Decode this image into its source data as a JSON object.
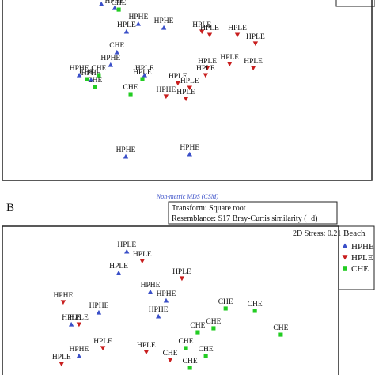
{
  "chart_data": [
    {
      "type": "scatter",
      "xlim": [
        0,
        100
      ],
      "ylim": [
        0,
        100
      ],
      "series": [
        {
          "color": "#3a4fc8",
          "marker": "triangle-up",
          "x": [
            26.8,
            30.4,
            36.8,
            33.6,
            31,
            29.3,
            24,
            33.4,
            50.7,
            43.7,
            38.5,
            20.8
          ],
          "y": [
            97.8,
            95.6,
            86.8,
            82.5,
            71,
            64,
            55.7,
            13.2,
            14.5,
            84.6,
            58.3,
            58.3
          ],
          "labels": [
            "HPHE",
            "HPHE",
            "HPHE",
            "HPLE",
            "CHE",
            "HPHE",
            "HPHE",
            "HPHE",
            "HPHE",
            "HPHE",
            "HPLE",
            "HPHE"
          ]
        },
        {
          "color": "#c81e1e",
          "marker": "triangle-down",
          "x": [
            54,
            56.1,
            63.6,
            68.5,
            61.5,
            67.9,
            55.5,
            47.5,
            50.7,
            44.3,
            49.7,
            55
          ],
          "y": [
            82.5,
            80.7,
            80.7,
            75.9,
            64.5,
            62.3,
            62.3,
            53.9,
            51.3,
            46.5,
            45.2,
            58.3
          ],
          "labels": [
            "HPLE",
            "HPLE",
            "HPLE",
            "HPLE",
            "HPLE",
            "HPLE",
            "HPLE",
            "HPLE",
            "HPLE",
            "HPHE",
            "HPLE",
            "HPLE"
          ]
        },
        {
          "color": "#22cc22",
          "marker": "square",
          "x": [
            34.7,
            25,
            22.9,
            37.9,
            31.5,
            26.1
          ],
          "y": [
            47.8,
            51.7,
            56.1,
            56.1,
            94.7,
            58.3
          ],
          "labels": [
            "CHE",
            "CHE",
            "CHE",
            "HPLE",
            "CHE",
            "CHE"
          ]
        }
      ]
    },
    {
      "type": "scatter",
      "panel": "B",
      "title": "Non-metric MDS (CSM)",
      "annotations": [
        "Transform: Square root",
        "Resemblance: S17 Bray-Curtis similarity (+d)",
        "2D Stress: 0.21"
      ],
      "legend_title": "Beach",
      "xlim": [
        0,
        100
      ],
      "ylim": [
        0,
        100
      ],
      "series": [
        {
          "name": "HPHE",
          "color": "#3a4fc8",
          "marker": "triangle-up",
          "x": [
            37,
            34.6,
            20.5,
            28.7,
            46.4,
            48.7,
            44,
            22.8
          ],
          "y": [
            83,
            68.6,
            34,
            42,
            39.4,
            50,
            55.9,
            12.8
          ],
          "labels": [
            "HPLE",
            "HPLE",
            "HPLE",
            "HPHE",
            "HPHE",
            "HPHE",
            "HPHE",
            "HPHE"
          ]
        },
        {
          "name": "HPLE",
          "color": "#c81e1e",
          "marker": "triangle-down",
          "x": [
            18.1,
            22.8,
            29.9,
            41.6,
            53.4,
            42.8,
            17.6,
            49.9
          ],
          "y": [
            49,
            34,
            18.1,
            76.6,
            64.9,
            15.4,
            7.4,
            10.1
          ],
          "labels": [
            "HPHE",
            "HPLE",
            "HPLE",
            "HPLE",
            "HPLE",
            "HPLE",
            "HPLE",
            "CHE"
          ]
        },
        {
          "name": "CHE",
          "color": "#22cc22",
          "marker": "square",
          "x": [
            75.1,
            82.8,
            66.4,
            62.8,
            54.6,
            60.5,
            58.1,
            55.8
          ],
          "y": [
            43.1,
            27.1,
            44.7,
            31.4,
            18.1,
            12.8,
            28.7,
            4.8
          ],
          "labels": [
            "CHE",
            "CHE",
            "CHE",
            "CHE",
            "CHE",
            "CHE",
            "CHE",
            "CHE"
          ]
        }
      ]
    }
  ]
}
